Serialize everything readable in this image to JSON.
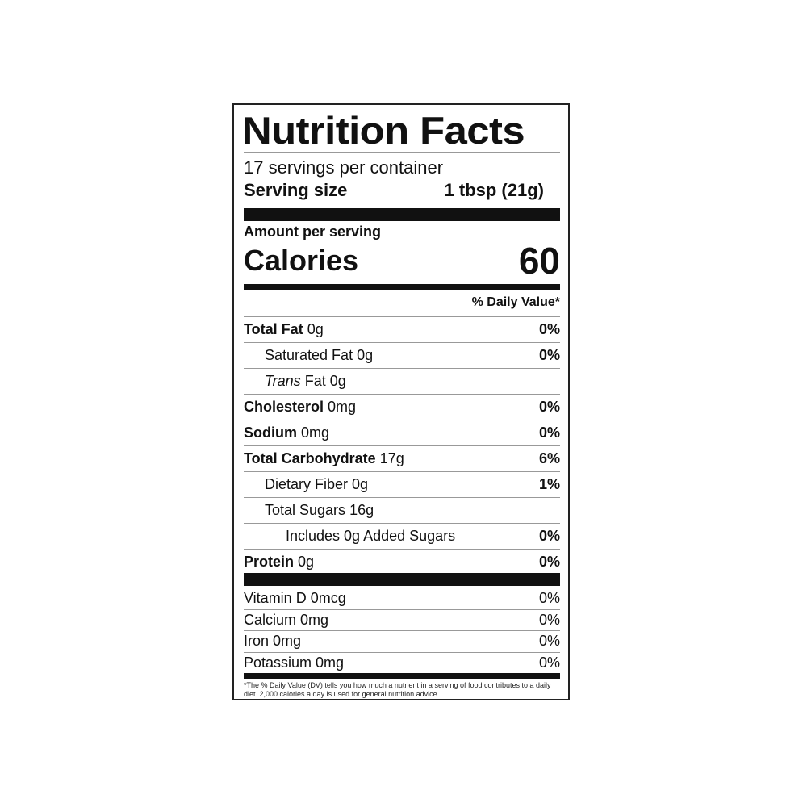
{
  "title": "Nutrition Facts",
  "servings_per_container": "17 servings per container",
  "serving_size": {
    "label": "Serving size",
    "value": "1 tbsp (21g)"
  },
  "amount_per_serving": "Amount per serving",
  "calories": {
    "label": "Calories",
    "value": "60"
  },
  "daily_value_header": "% Daily Value*",
  "nutrients": [
    {
      "name": "Total Fat",
      "amount": "0g",
      "dv": "0%",
      "bold": true,
      "indent": 0
    },
    {
      "name": "Saturated Fat",
      "amount": "0g",
      "dv": "0%",
      "bold": false,
      "indent": 1
    },
    {
      "name": "Trans",
      "name_suffix": "Fat",
      "amount": "0g",
      "dv": "",
      "bold": false,
      "indent": 1,
      "italic_prefix": true
    },
    {
      "name": "Cholesterol",
      "amount": "0mg",
      "dv": "0%",
      "bold": true,
      "indent": 0
    },
    {
      "name": "Sodium",
      "amount": "0mg",
      "dv": "0%",
      "bold": true,
      "indent": 0
    },
    {
      "name": "Total Carbohydrate",
      "amount": "17g",
      "dv": "6%",
      "bold": true,
      "indent": 0
    },
    {
      "name": "Dietary Fiber",
      "amount": "0g",
      "dv": "1%",
      "bold": false,
      "indent": 1
    },
    {
      "name": "Total Sugars",
      "amount": "16g",
      "dv": "",
      "bold": false,
      "indent": 1
    },
    {
      "name": "Includes 0g Added Sugars",
      "amount": "",
      "dv": "0%",
      "bold": false,
      "indent": 2
    },
    {
      "name": "Protein",
      "amount": "0g",
      "dv": "0%",
      "bold": true,
      "indent": 0
    }
  ],
  "vitamins": [
    {
      "text": "Vitamin D 0mcg",
      "dv": "0%"
    },
    {
      "text": "Calcium 0mg",
      "dv": "0%"
    },
    {
      "text": "Iron 0mg",
      "dv": "0%"
    },
    {
      "text": "Potassium 0mg",
      "dv": "0%"
    }
  ],
  "footnote": "*The % Daily Value (DV) tells you how much a nutrient in a serving of food contributes to a daily diet. 2,000 calories a day is used for general nutrition advice."
}
